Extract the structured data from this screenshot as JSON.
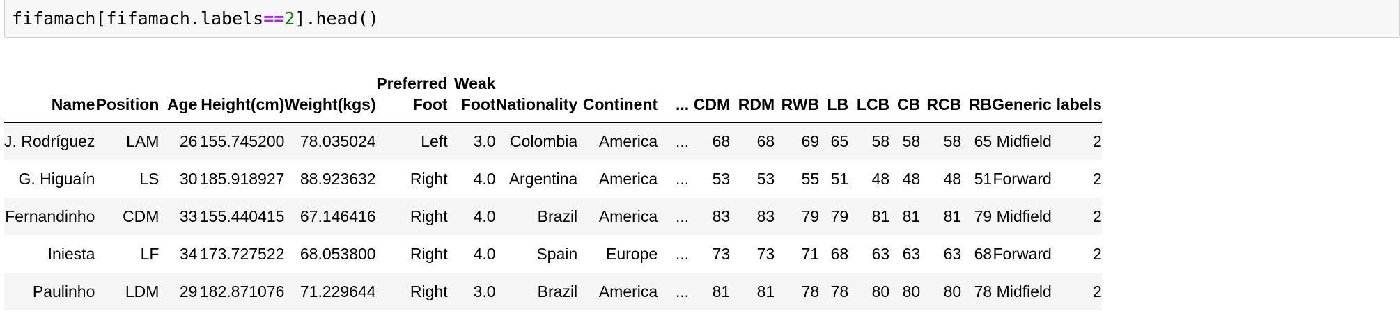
{
  "code": {
    "prefix": "fifamach[fifamach.labels",
    "op": "==",
    "num": "2",
    "suffix": "].head()"
  },
  "table": {
    "columns": [
      "Name",
      "Position",
      "Age",
      "Height(cm)",
      "Weight(kgs)",
      "Preferred Foot",
      "Weak Foot",
      "Nationality",
      "Continent",
      "...",
      "CDM",
      "RDM",
      "RWB",
      "LB",
      "LCB",
      "CB",
      "RCB",
      "RB",
      "Generic",
      "labels"
    ],
    "rows": [
      [
        "J. Rodríguez",
        "LAM",
        "26",
        "155.745200",
        "78.035024",
        "Left",
        "3.0",
        "Colombia",
        "America",
        "...",
        "68",
        "68",
        "69",
        "65",
        "58",
        "58",
        "58",
        "65",
        "Midfield",
        "2"
      ],
      [
        "G. Higuaín",
        "LS",
        "30",
        "185.918927",
        "88.923632",
        "Right",
        "4.0",
        "Argentina",
        "America",
        "...",
        "53",
        "53",
        "55",
        "51",
        "48",
        "48",
        "48",
        "51",
        "Forward",
        "2"
      ],
      [
        "Fernandinho",
        "CDM",
        "33",
        "155.440415",
        "67.146416",
        "Right",
        "4.0",
        "Brazil",
        "America",
        "...",
        "83",
        "83",
        "79",
        "79",
        "81",
        "81",
        "81",
        "79",
        "Midfield",
        "2"
      ],
      [
        "Iniesta",
        "LF",
        "34",
        "173.727522",
        "68.053800",
        "Right",
        "4.0",
        "Spain",
        "Europe",
        "...",
        "73",
        "73",
        "71",
        "68",
        "63",
        "63",
        "63",
        "68",
        "Forward",
        "2"
      ],
      [
        "Paulinho",
        "LDM",
        "29",
        "182.871076",
        "71.229644",
        "Right",
        "3.0",
        "Brazil",
        "America",
        "...",
        "81",
        "81",
        "78",
        "78",
        "80",
        "80",
        "80",
        "78",
        "Midfield",
        "2"
      ]
    ]
  }
}
